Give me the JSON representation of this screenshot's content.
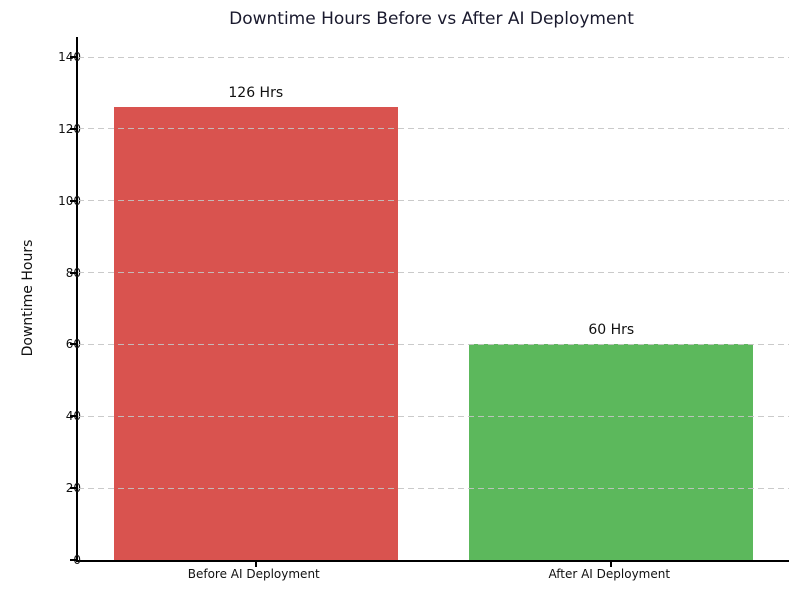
{
  "chart_data": {
    "type": "bar",
    "title": "Downtime Hours Before vs After AI Deployment",
    "categories": [
      "Before AI Deployment",
      "After AI Deployment"
    ],
    "values": [
      126,
      60
    ],
    "bar_labels": [
      "126 Hrs",
      "60 Hrs"
    ],
    "bar_colors": [
      "#d9534f",
      "#5cb85c"
    ],
    "xlabel": "",
    "ylabel": "Downtime Hours",
    "ylim": [
      0,
      145.6
    ],
    "yticks": [
      0,
      20,
      40,
      60,
      80,
      100,
      120,
      140
    ],
    "bar_width_fraction": 0.8,
    "grid": "horizontal-dashed",
    "legend": "none"
  },
  "colors": {
    "bar_before": "#d9534f",
    "bar_after": "#5cb85c",
    "grid": "#c4c4c4",
    "axis": "#000000",
    "title_text": "#1a1a2e",
    "tick_text": "#111111",
    "background": "#ffffff"
  }
}
